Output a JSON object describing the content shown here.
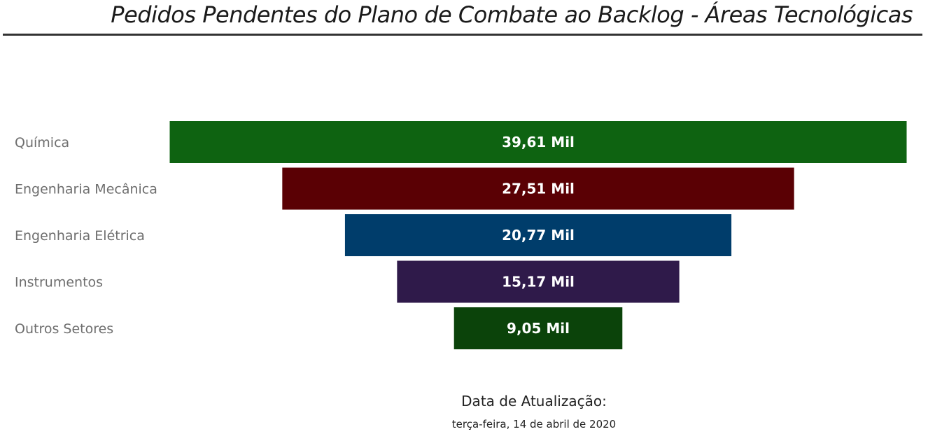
{
  "title": "Pedidos Pendentes do Plano de Combate ao Backlog - Áreas Tecnológicas",
  "footer": {
    "label": "Data de Atualização:",
    "date": "terça-feira, 14 de abril de 2020"
  },
  "chart_data": {
    "type": "funnel",
    "categories": [
      "Química",
      "Engenharia Mecânica",
      "Engenharia Elétrica",
      "Instrumentos",
      "Outros Setores"
    ],
    "values": [
      39.61,
      27.51,
      20.77,
      15.17,
      9.05
    ],
    "value_labels": [
      "39,61 Mil",
      "27,51 Mil",
      "20,77 Mil",
      "15,17 Mil",
      "9,05 Mil"
    ],
    "colors": [
      "#0e6311",
      "#5a0004",
      "#003d6b",
      "#2f1a4a",
      "#0b430a"
    ],
    "label_color": "#ffffff",
    "category_label_color": "#6e6e6e"
  }
}
